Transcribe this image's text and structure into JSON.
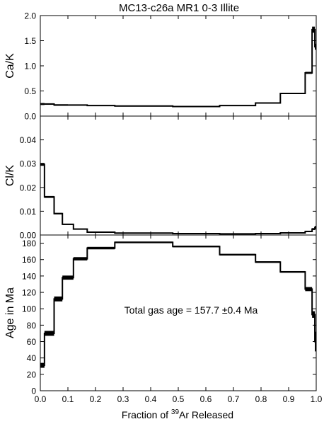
{
  "chart_data": {
    "type": "line",
    "title": "MC13-c26a MR1 0-3 Illite",
    "xlabel_prefix": "Fraction of ",
    "xlabel_sup": "39",
    "xlabel_suffix": "Ar Released",
    "xlim": [
      0,
      1
    ],
    "xticks": [
      "0.0",
      "0.1",
      "0.2",
      "0.3",
      "0.4",
      "0.5",
      "0.6",
      "0.7",
      "0.8",
      "0.9",
      "1.0"
    ],
    "line_color": "#000000",
    "panels": [
      {
        "ylabel": "Ca/K",
        "ylim": [
          0,
          2.0
        ],
        "yticks": [
          "0.0",
          "0.5",
          "1.0",
          "1.5",
          "2.0"
        ],
        "steps": [
          {
            "x0": 0.0,
            "x1": 0.015,
            "y": 0.24,
            "err": 0.02
          },
          {
            "x0": 0.015,
            "x1": 0.05,
            "y": 0.24,
            "err": 0.015
          },
          {
            "x0": 0.05,
            "x1": 0.1,
            "y": 0.22,
            "err": 0.015
          },
          {
            "x0": 0.1,
            "x1": 0.17,
            "y": 0.22,
            "err": 0.01
          },
          {
            "x0": 0.17,
            "x1": 0.27,
            "y": 0.21,
            "err": 0.01
          },
          {
            "x0": 0.27,
            "x1": 0.48,
            "y": 0.2,
            "err": 0.01
          },
          {
            "x0": 0.48,
            "x1": 0.65,
            "y": 0.19,
            "err": 0.01
          },
          {
            "x0": 0.65,
            "x1": 0.78,
            "y": 0.21,
            "err": 0.01
          },
          {
            "x0": 0.78,
            "x1": 0.87,
            "y": 0.26,
            "err": 0.01
          },
          {
            "x0": 0.87,
            "x1": 0.96,
            "y": 0.45,
            "err": 0.01
          },
          {
            "x0": 0.96,
            "x1": 0.985,
            "y": 0.86,
            "err": 0.02
          },
          {
            "x0": 0.985,
            "x1": 0.995,
            "y": 1.72,
            "err": 0.06
          },
          {
            "x0": 0.995,
            "x1": 1.0,
            "y": 1.38,
            "err": 0.06
          }
        ]
      },
      {
        "ylabel": "Cl/K",
        "ylim": [
          0,
          0.05
        ],
        "yticks": [
          "0.00",
          "0.01",
          "0.02",
          "0.03",
          "0.04"
        ],
        "steps": [
          {
            "x0": 0.0,
            "x1": 0.015,
            "y": 0.0297,
            "err": 0.0006
          },
          {
            "x0": 0.015,
            "x1": 0.05,
            "y": 0.016,
            "err": 0.0004
          },
          {
            "x0": 0.05,
            "x1": 0.08,
            "y": 0.009,
            "err": 0.0003
          },
          {
            "x0": 0.08,
            "x1": 0.12,
            "y": 0.0045,
            "err": 0.0002
          },
          {
            "x0": 0.12,
            "x1": 0.17,
            "y": 0.0025,
            "err": 0.0002
          },
          {
            "x0": 0.17,
            "x1": 0.27,
            "y": 0.0012,
            "err": 0.0002
          },
          {
            "x0": 0.27,
            "x1": 0.48,
            "y": 0.0008,
            "err": 0.0002
          },
          {
            "x0": 0.48,
            "x1": 0.65,
            "y": 0.0006,
            "err": 0.0002
          },
          {
            "x0": 0.65,
            "x1": 0.78,
            "y": 0.0005,
            "err": 0.0002
          },
          {
            "x0": 0.78,
            "x1": 0.87,
            "y": 0.0006,
            "err": 0.0002
          },
          {
            "x0": 0.87,
            "x1": 0.96,
            "y": 0.0009,
            "err": 0.0002
          },
          {
            "x0": 0.96,
            "x1": 0.985,
            "y": 0.0015,
            "err": 0.0003
          },
          {
            "x0": 0.985,
            "x1": 0.995,
            "y": 0.0025,
            "err": 0.0004
          },
          {
            "x0": 0.995,
            "x1": 1.0,
            "y": 0.0032,
            "err": 0.0006
          }
        ]
      },
      {
        "ylabel": "Age in Ma",
        "ylim": [
          0,
          190
        ],
        "yticks": [
          "0",
          "20",
          "40",
          "60",
          "80",
          "100",
          "120",
          "140",
          "160",
          "180"
        ],
        "annotation": "Total gas age = 157.7 ±0.4 Ma",
        "steps": [
          {
            "x0": 0.0,
            "x1": 0.015,
            "y": 31,
            "err": 3
          },
          {
            "x0": 0.015,
            "x1": 0.05,
            "y": 70,
            "err": 3
          },
          {
            "x0": 0.05,
            "x1": 0.08,
            "y": 112,
            "err": 3
          },
          {
            "x0": 0.08,
            "x1": 0.12,
            "y": 138,
            "err": 2.5
          },
          {
            "x0": 0.12,
            "x1": 0.17,
            "y": 161,
            "err": 2
          },
          {
            "x0": 0.17,
            "x1": 0.27,
            "y": 174,
            "err": 1.5
          },
          {
            "x0": 0.27,
            "x1": 0.48,
            "y": 181,
            "err": 1
          },
          {
            "x0": 0.48,
            "x1": 0.65,
            "y": 176,
            "err": 1
          },
          {
            "x0": 0.65,
            "x1": 0.78,
            "y": 166,
            "err": 1
          },
          {
            "x0": 0.78,
            "x1": 0.87,
            "y": 157,
            "err": 1
          },
          {
            "x0": 0.87,
            "x1": 0.96,
            "y": 145,
            "err": 1
          },
          {
            "x0": 0.96,
            "x1": 0.985,
            "y": 124,
            "err": 2.5
          },
          {
            "x0": 0.985,
            "x1": 0.995,
            "y": 93,
            "err": 4
          },
          {
            "x0": 0.995,
            "x1": 1.0,
            "y": 60,
            "err": 12
          }
        ]
      }
    ]
  }
}
